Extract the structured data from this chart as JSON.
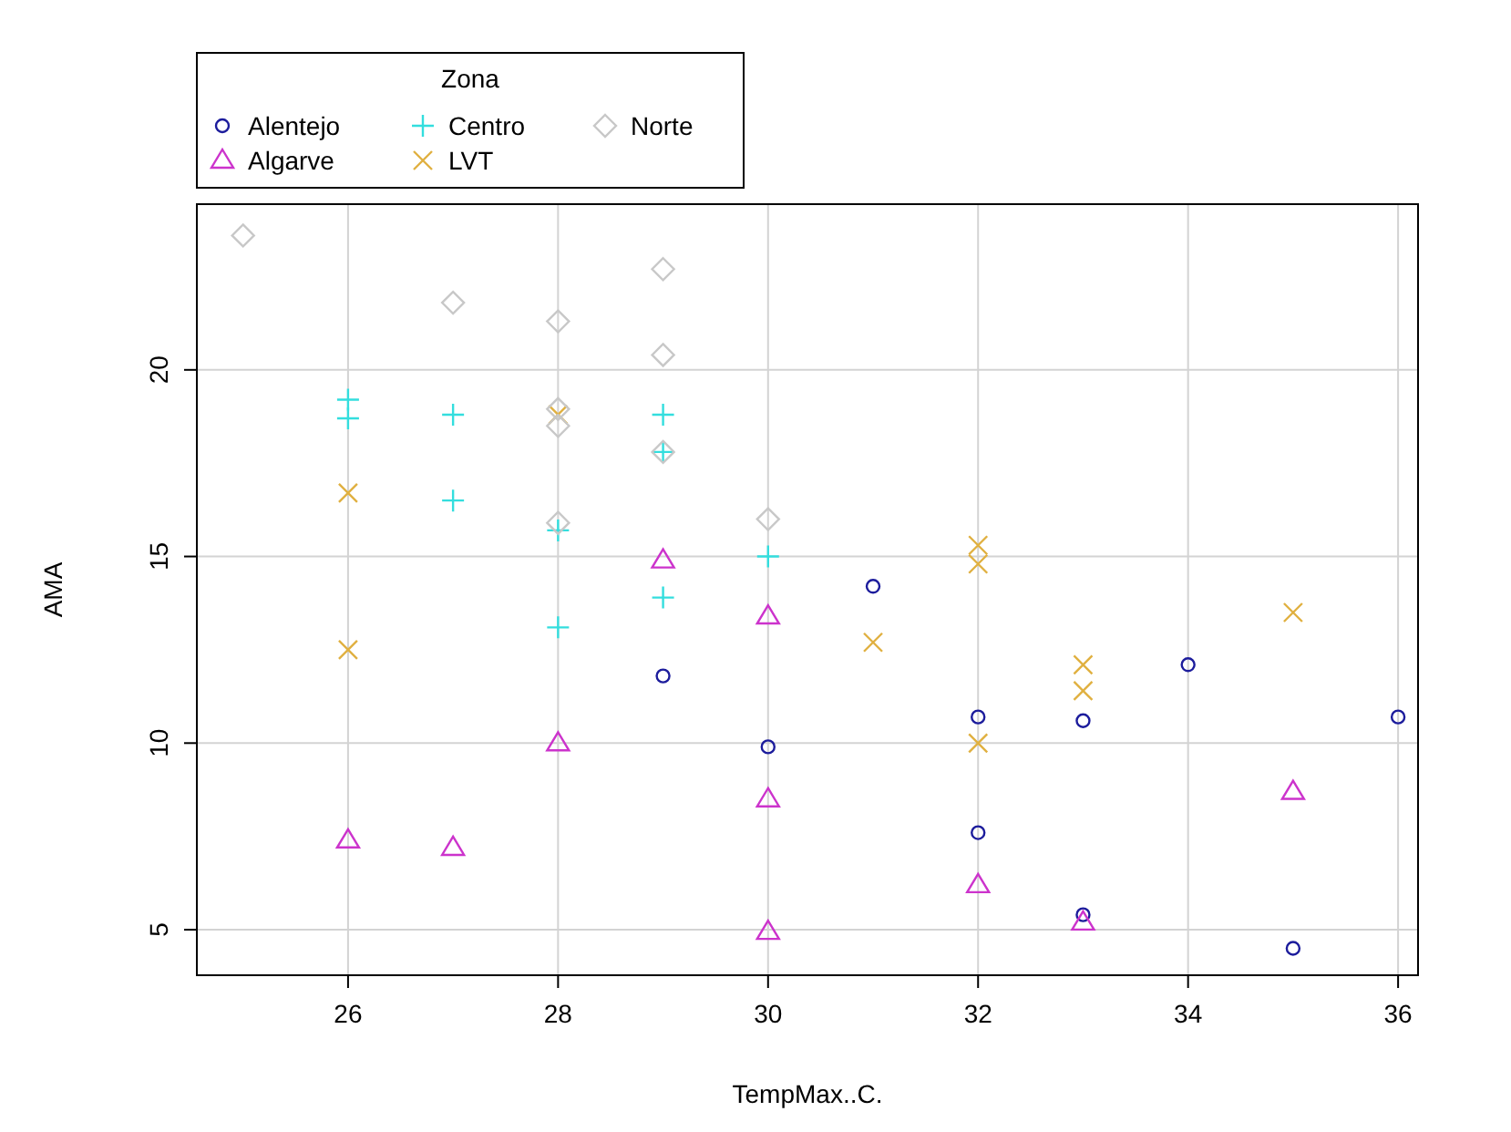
{
  "chart_data": {
    "type": "scatter",
    "xlabel": "TempMax..C.",
    "ylabel": "AMA",
    "legend_title": "Zona",
    "legend": "top left",
    "grid": true,
    "xlim": [
      24.56,
      36.19
    ],
    "ylim": [
      3.78,
      24.44
    ],
    "xticks": [
      26,
      28,
      30,
      32,
      34,
      36
    ],
    "yticks": [
      5,
      10,
      15,
      20
    ],
    "series": [
      {
        "name": "Alentejo",
        "color": "#1c1c9c",
        "marker": "circle",
        "x": [
          29,
          30,
          31,
          32,
          32,
          33,
          33,
          34,
          35,
          36
        ],
        "values": [
          11.8,
          9.9,
          14.2,
          10.7,
          7.6,
          10.6,
          5.4,
          12.1,
          4.5,
          10.7
        ]
      },
      {
        "name": "Algarve",
        "color": "#cc33cc",
        "marker": "triangle",
        "x": [
          26,
          27,
          28,
          29,
          30,
          30,
          30,
          32,
          33,
          35
        ],
        "values": [
          7.4,
          7.2,
          10.0,
          14.9,
          13.4,
          8.5,
          4.95,
          6.2,
          5.2,
          8.7
        ]
      },
      {
        "name": "Centro",
        "color": "#33dede",
        "marker": "plus",
        "x": [
          26,
          26,
          27,
          27,
          28,
          28,
          29,
          29,
          29,
          30
        ],
        "values": [
          19.2,
          18.7,
          18.8,
          16.5,
          15.7,
          13.1,
          18.8,
          17.8,
          13.9,
          15.0
        ]
      },
      {
        "name": "LVT",
        "color": "#e0b040",
        "marker": "cross",
        "x": [
          26,
          26,
          28,
          31,
          32,
          32,
          32,
          33,
          33,
          35
        ],
        "values": [
          16.7,
          12.5,
          18.8,
          12.7,
          15.3,
          14.8,
          10.0,
          12.1,
          11.4,
          13.5
        ]
      },
      {
        "name": "Norte",
        "color": "#c8c8c8",
        "marker": "diamond",
        "x": [
          25,
          27,
          28,
          29,
          29,
          28,
          28,
          29,
          28,
          30
        ],
        "values": [
          23.6,
          21.8,
          21.3,
          22.7,
          20.4,
          18.95,
          18.5,
          17.8,
          15.9,
          16.0
        ]
      }
    ]
  }
}
